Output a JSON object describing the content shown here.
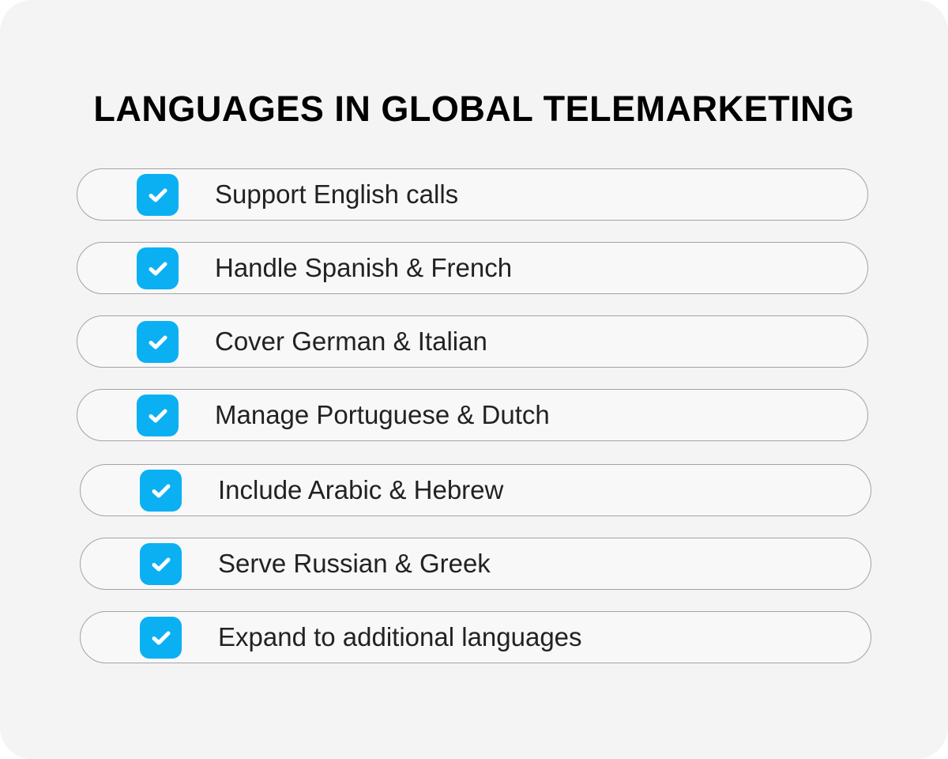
{
  "title": "LANGUAGES IN GLOBAL TELEMARKETING",
  "accent_color": "#0bb0f2",
  "items": [
    {
      "label": "Support English calls",
      "checked": true,
      "icon": "checkbox-checked-icon"
    },
    {
      "label": "Handle Spanish & French",
      "checked": true,
      "icon": "checkbox-checked-icon"
    },
    {
      "label": "Cover German & Italian",
      "checked": true,
      "icon": "checkbox-checked-icon"
    },
    {
      "label": "Manage Portuguese & Dutch",
      "checked": true,
      "icon": "checkbox-checked-icon"
    },
    {
      "label": "Include Arabic & Hebrew",
      "checked": true,
      "icon": "checkbox-checked-icon"
    },
    {
      "label": "Serve Russian & Greek",
      "checked": true,
      "icon": "checkbox-checked-icon"
    },
    {
      "label": "Expand to additional languages",
      "checked": true,
      "icon": "checkbox-checked-icon"
    }
  ]
}
